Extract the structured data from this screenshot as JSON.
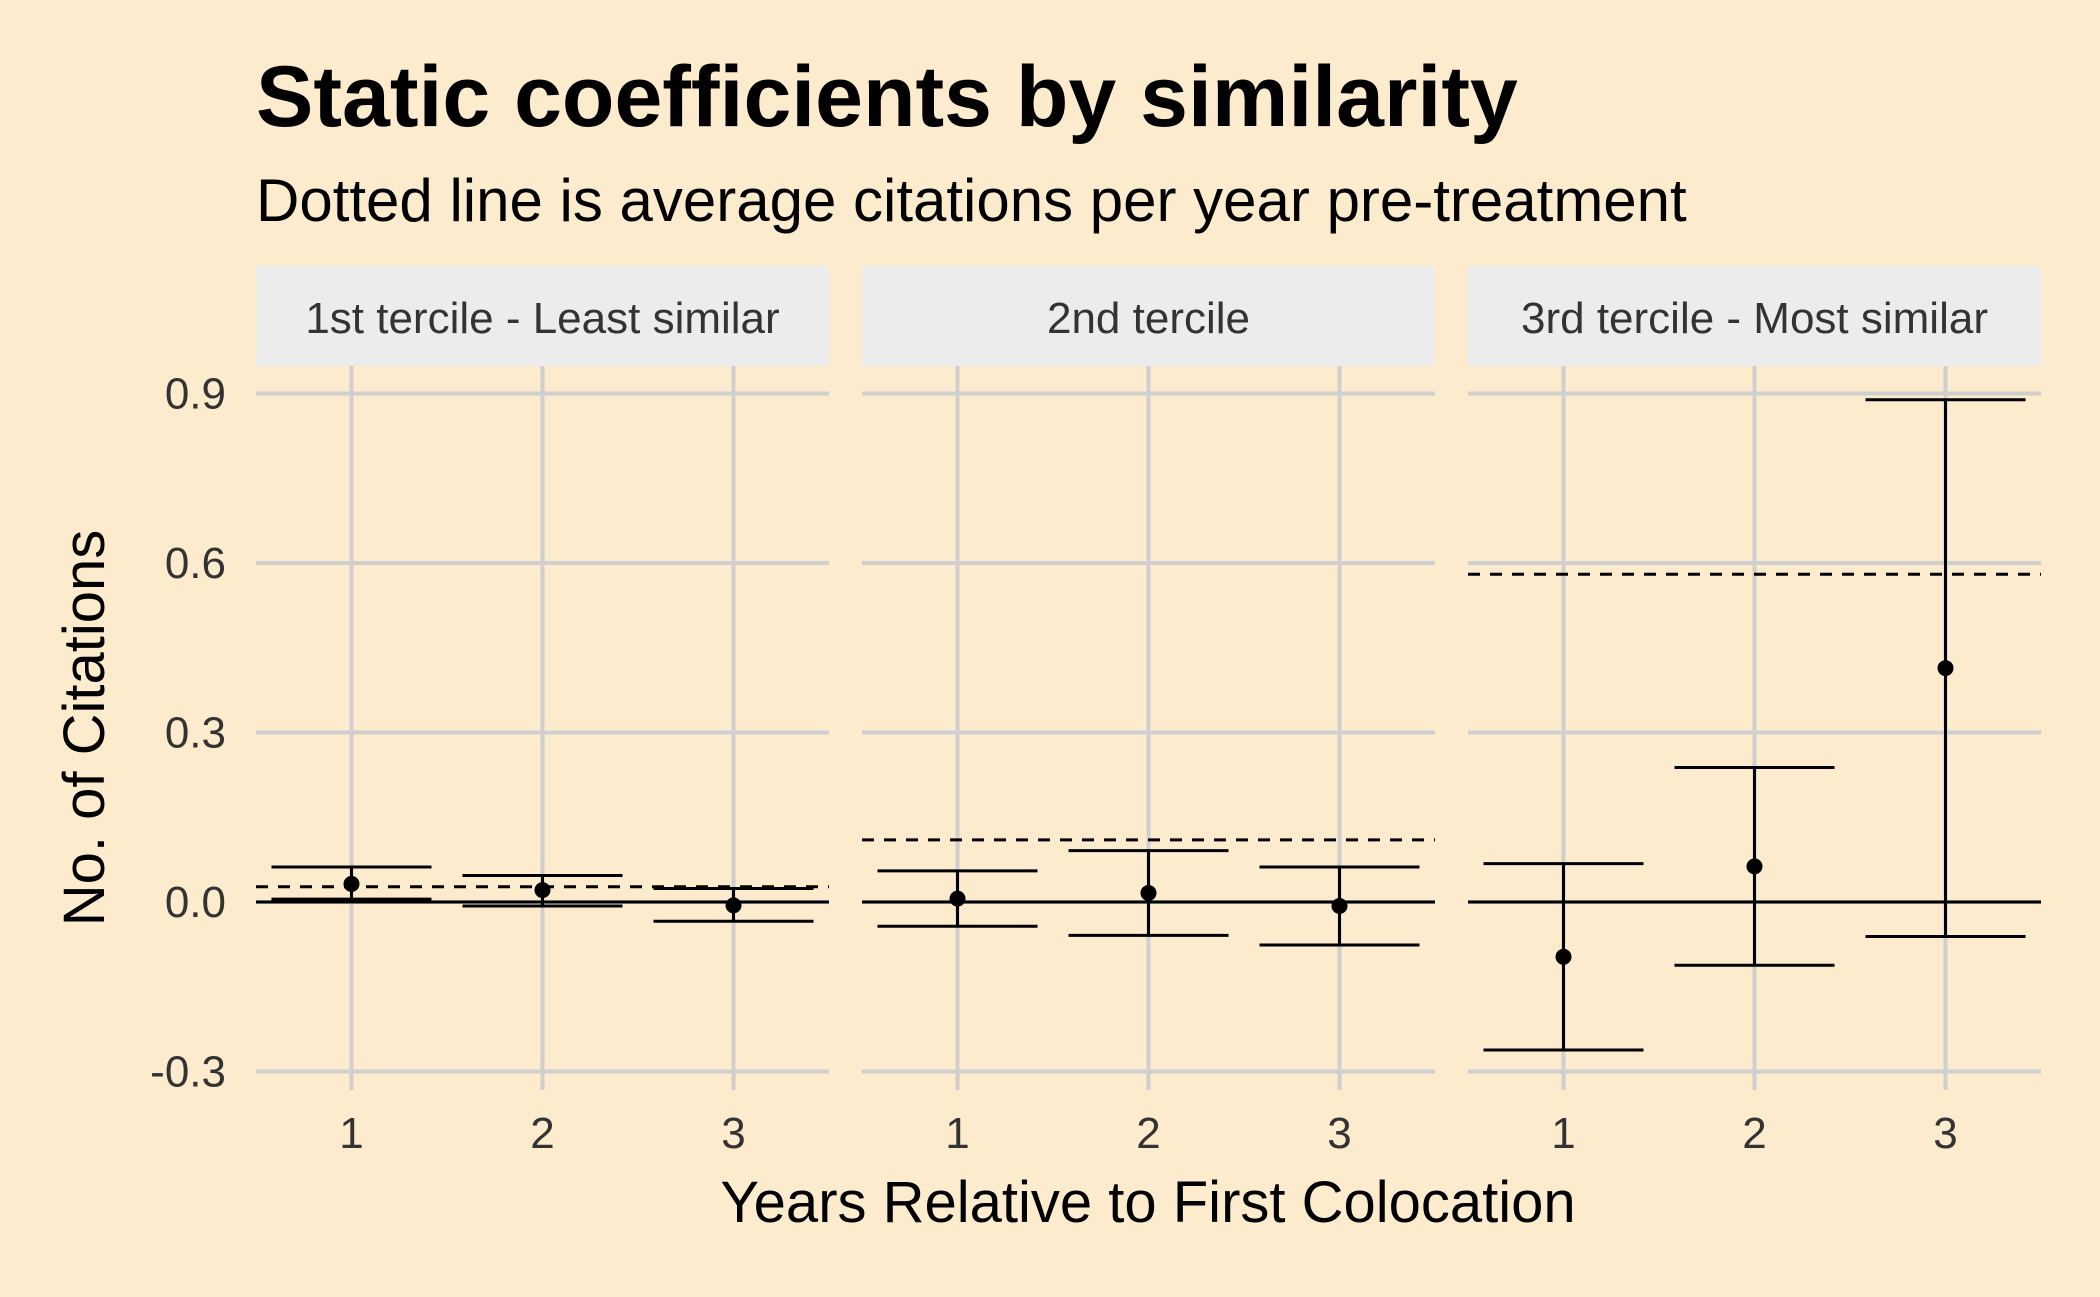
{
  "chart_data": {
    "type": "errorbar",
    "title": "Static coefficients by similarity",
    "subtitle": "Dotted line is average citations per year pre-treatment",
    "xlabel": "Years Relative to First Colocation",
    "ylabel": "No. of Citations",
    "ylim": [
      -0.3,
      0.9
    ],
    "y_ticks": [
      "-0.3",
      "0.0",
      "0.3",
      "0.6",
      "0.9"
    ],
    "x_ticks": [
      "1",
      "2",
      "3"
    ],
    "grid": true,
    "reference_line_y": 0,
    "panels": [
      {
        "label": "1st tercile - Least similar",
        "pretreatment_mean": 0.027,
        "points": [
          {
            "x": 1,
            "y": 0.032,
            "low": 0.005,
            "high": 0.062
          },
          {
            "x": 2,
            "y": 0.021,
            "low": -0.007,
            "high": 0.047
          },
          {
            "x": 3,
            "y": -0.006,
            "low": -0.034,
            "high": 0.024
          }
        ]
      },
      {
        "label": "2nd tercile",
        "pretreatment_mean": 0.11,
        "points": [
          {
            "x": 1,
            "y": 0.006,
            "low": -0.043,
            "high": 0.055
          },
          {
            "x": 2,
            "y": 0.016,
            "low": -0.059,
            "high": 0.091
          },
          {
            "x": 3,
            "y": -0.007,
            "low": -0.076,
            "high": 0.062
          }
        ]
      },
      {
        "label": "3rd tercile - Most similar",
        "pretreatment_mean": 0.58,
        "points": [
          {
            "x": 1,
            "y": -0.097,
            "low": -0.262,
            "high": 0.068
          },
          {
            "x": 2,
            "y": 0.063,
            "low": -0.112,
            "high": 0.238
          },
          {
            "x": 3,
            "y": 0.414,
            "low": -0.061,
            "high": 0.889
          }
        ]
      }
    ],
    "colors": {
      "background": "#fdebcd",
      "strip": "#ececec",
      "grid": "#cfcfcf",
      "marks": "#000000",
      "text": "#333333"
    }
  }
}
